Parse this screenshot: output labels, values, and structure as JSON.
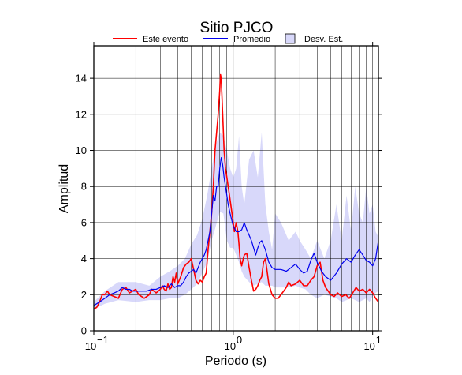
{
  "chart_data": {
    "type": "line",
    "title": "Sitio PJCO",
    "xlabel": "Periodo (s)",
    "ylabel": "Amplitud",
    "xscale": "log",
    "xlim": [
      0.1,
      11
    ],
    "ylim": [
      0,
      15.8
    ],
    "grid": true,
    "legend_position": "top",
    "xticks": [
      {
        "value": 0.1,
        "base": "10",
        "exp": "−1"
      },
      {
        "value": 1,
        "base": "10",
        "exp": "0"
      },
      {
        "value": 10,
        "base": "10",
        "exp": "1"
      }
    ],
    "yticks": [
      0,
      2,
      4,
      6,
      8,
      10,
      12,
      14
    ],
    "legend": [
      {
        "label": "Este evento",
        "kind": "line",
        "color": "#ff0000"
      },
      {
        "label": "Promedio",
        "kind": "line",
        "color": "#0000ee"
      },
      {
        "label": "Desv. Est.",
        "kind": "box",
        "color": "#d8d8fa"
      }
    ],
    "band": {
      "name": "Desv. Est.",
      "color": "#d8d8fa",
      "x": [
        0.1,
        0.12,
        0.15,
        0.2,
        0.25,
        0.3,
        0.35,
        0.4,
        0.45,
        0.5,
        0.55,
        0.6,
        0.65,
        0.7,
        0.75,
        0.8,
        0.85,
        0.9,
        0.95,
        1.0,
        1.05,
        1.1,
        1.15,
        1.2,
        1.3,
        1.4,
        1.5,
        1.6,
        1.7,
        1.8,
        1.9,
        2.0,
        2.2,
        2.5,
        2.8,
        3.0,
        3.3,
        3.6,
        4.0,
        4.5,
        5.0,
        5.5,
        6.0,
        6.5,
        7.0,
        7.5,
        8.0,
        8.5,
        9.0,
        9.5,
        10.0,
        10.5,
        11.0
      ],
      "upper": [
        1.6,
        2.2,
        2.7,
        2.7,
        2.5,
        3.0,
        3.3,
        3.6,
        4.0,
        4.8,
        5.3,
        6.2,
        7.5,
        9.0,
        10.3,
        11.0,
        10.8,
        10.0,
        9.0,
        8.5,
        9.0,
        10.8,
        8.0,
        7.0,
        9.5,
        10.0,
        8.5,
        11.0,
        7.0,
        5.5,
        4.5,
        6.5,
        6.0,
        5.0,
        5.5,
        5.0,
        4.5,
        4.0,
        5.0,
        4.0,
        5.0,
        7.0,
        5.0,
        7.5,
        5.5,
        8.0,
        6.5,
        6.0,
        8.0,
        6.5,
        7.0,
        5.5,
        5.2
      ],
      "lower": [
        1.2,
        1.5,
        1.7,
        1.6,
        1.7,
        1.7,
        1.8,
        1.8,
        2.0,
        2.3,
        2.6,
        3.2,
        3.8,
        5.0,
        5.8,
        6.6,
        6.5,
        5.0,
        4.6,
        4.6,
        4.2,
        3.8,
        3.3,
        3.0,
        2.7,
        2.5,
        2.6,
        2.7,
        2.5,
        2.5,
        2.5,
        2.4,
        2.4,
        2.4,
        2.5,
        2.4,
        2.3,
        2.0,
        1.8,
        2.0,
        1.9,
        1.8,
        1.6,
        1.7,
        1.8,
        1.7,
        1.6,
        1.7,
        1.8,
        1.6,
        1.9,
        2.1,
        2.2
      ]
    },
    "series": [
      {
        "name": "Este evento",
        "color": "#ff0000",
        "x": [
          0.1,
          0.105,
          0.11,
          0.115,
          0.12,
          0.125,
          0.13,
          0.14,
          0.15,
          0.16,
          0.17,
          0.18,
          0.19,
          0.2,
          0.21,
          0.22,
          0.23,
          0.24,
          0.25,
          0.26,
          0.27,
          0.28,
          0.29,
          0.3,
          0.31,
          0.32,
          0.33,
          0.34,
          0.35,
          0.36,
          0.37,
          0.38,
          0.39,
          0.4,
          0.42,
          0.44,
          0.46,
          0.48,
          0.5,
          0.52,
          0.54,
          0.56,
          0.58,
          0.6,
          0.62,
          0.64,
          0.66,
          0.68,
          0.7,
          0.72,
          0.74,
          0.76,
          0.78,
          0.8,
          0.81,
          0.82,
          0.83,
          0.84,
          0.85,
          0.86,
          0.88,
          0.9,
          0.92,
          0.94,
          0.96,
          0.98,
          1.0,
          1.02,
          1.05,
          1.08,
          1.1,
          1.12,
          1.15,
          1.18,
          1.2,
          1.25,
          1.3,
          1.35,
          1.4,
          1.45,
          1.5,
          1.55,
          1.6,
          1.65,
          1.7,
          1.75,
          1.8,
          1.9,
          2.0,
          2.1,
          2.2,
          2.3,
          2.4,
          2.5,
          2.6,
          2.8,
          3.0,
          3.2,
          3.4,
          3.6,
          3.8,
          4.0,
          4.2,
          4.4,
          4.6,
          4.8,
          5.0,
          5.3,
          5.6,
          6.0,
          6.4,
          6.8,
          7.2,
          7.6,
          8.0,
          8.5,
          9.0,
          9.5,
          10.0,
          10.5,
          11.0
        ],
        "y": [
          1.2,
          1.3,
          1.6,
          2.0,
          2.0,
          2.2,
          2.0,
          1.9,
          1.8,
          2.3,
          2.4,
          2.1,
          2.2,
          2.3,
          2.0,
          1.9,
          1.8,
          1.9,
          2.0,
          2.3,
          2.2,
          2.1,
          2.2,
          2.3,
          2.5,
          2.3,
          2.2,
          2.6,
          2.3,
          2.4,
          3.0,
          2.7,
          3.2,
          2.6,
          3.0,
          3.5,
          3.7,
          3.8,
          4.0,
          3.4,
          2.8,
          2.6,
          2.8,
          2.7,
          3.0,
          3.2,
          4.5,
          5.5,
          6.5,
          8.0,
          10.0,
          11.0,
          12.0,
          13.3,
          14.2,
          14.0,
          13.0,
          12.0,
          11.0,
          10.0,
          9.0,
          8.5,
          8.0,
          7.5,
          7.0,
          6.5,
          6.0,
          5.5,
          6.0,
          5.5,
          4.8,
          4.0,
          3.6,
          4.0,
          4.2,
          4.3,
          3.5,
          2.8,
          2.2,
          2.3,
          2.5,
          2.8,
          3.0,
          3.8,
          4.0,
          3.3,
          2.6,
          2.0,
          1.8,
          1.8,
          2.0,
          2.2,
          2.4,
          2.7,
          2.5,
          2.6,
          2.8,
          2.5,
          2.5,
          2.8,
          3.0,
          3.6,
          3.8,
          2.8,
          2.4,
          2.2,
          2.0,
          1.9,
          2.1,
          1.9,
          2.0,
          1.8,
          2.1,
          2.4,
          2.2,
          2.3,
          2.1,
          2.3,
          2.1,
          1.8,
          1.6
        ]
      },
      {
        "name": "Promedio",
        "color": "#0000ee",
        "x": [
          0.1,
          0.11,
          0.12,
          0.13,
          0.14,
          0.15,
          0.16,
          0.17,
          0.18,
          0.19,
          0.2,
          0.22,
          0.24,
          0.26,
          0.28,
          0.3,
          0.32,
          0.34,
          0.36,
          0.38,
          0.4,
          0.42,
          0.44,
          0.46,
          0.48,
          0.5,
          0.52,
          0.54,
          0.56,
          0.58,
          0.6,
          0.62,
          0.64,
          0.66,
          0.68,
          0.7,
          0.72,
          0.74,
          0.76,
          0.78,
          0.8,
          0.82,
          0.84,
          0.86,
          0.88,
          0.9,
          0.92,
          0.95,
          1.0,
          1.05,
          1.1,
          1.15,
          1.2,
          1.25,
          1.3,
          1.35,
          1.4,
          1.45,
          1.5,
          1.55,
          1.6,
          1.7,
          1.8,
          1.9,
          2.0,
          2.1,
          2.2,
          2.4,
          2.6,
          2.8,
          3.0,
          3.2,
          3.4,
          3.6,
          3.8,
          4.0,
          4.3,
          4.6,
          5.0,
          5.5,
          6.0,
          6.5,
          7.0,
          7.5,
          8.0,
          8.5,
          9.0,
          9.5,
          10.0,
          10.5,
          11.0
        ],
        "y": [
          1.4,
          1.6,
          1.8,
          2.0,
          2.1,
          2.2,
          2.4,
          2.3,
          2.3,
          2.2,
          2.2,
          2.2,
          2.2,
          2.3,
          2.3,
          2.4,
          2.5,
          2.4,
          2.6,
          2.4,
          2.5,
          2.5,
          2.7,
          3.0,
          3.2,
          3.3,
          3.4,
          3.2,
          3.5,
          3.8,
          4.0,
          4.2,
          4.5,
          5.0,
          5.5,
          6.5,
          7.5,
          7.2,
          8.0,
          8.0,
          9.0,
          9.6,
          9.2,
          8.5,
          8.0,
          7.5,
          7.0,
          6.5,
          5.8,
          5.5,
          5.5,
          5.6,
          6.0,
          5.6,
          5.3,
          5.0,
          4.6,
          4.2,
          4.6,
          4.9,
          5.0,
          4.5,
          3.8,
          3.5,
          3.4,
          3.4,
          3.4,
          3.3,
          3.5,
          3.7,
          3.4,
          3.2,
          3.3,
          3.9,
          4.3,
          3.8,
          3.3,
          3.0,
          2.8,
          3.2,
          3.7,
          4.0,
          3.8,
          4.2,
          4.5,
          4.2,
          3.9,
          3.8,
          3.6,
          4.0,
          5.0
        ]
      }
    ]
  }
}
